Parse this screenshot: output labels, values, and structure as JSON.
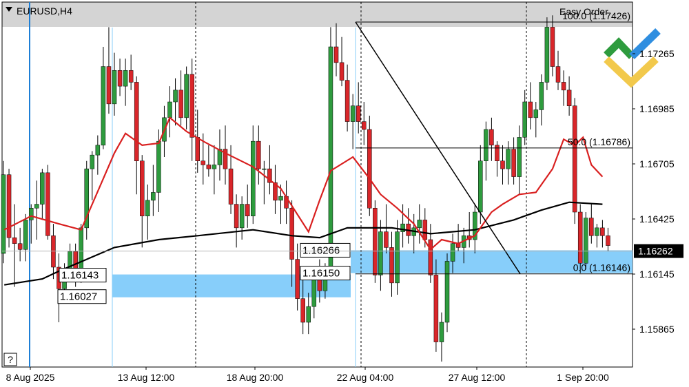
{
  "header": {
    "symbol_label": "EURUSD,H4",
    "easy_order_label": "Easy Order"
  },
  "help_button_label": "?",
  "colors": {
    "bull": "#2e9b3e",
    "bear": "#d9262a",
    "ma_fast": "#d92020",
    "ma_slow": "#000000",
    "zone": "#87cefa",
    "current_price_bg": "#000000",
    "logo_green": "#2e9b3e",
    "logo_blue": "#2f8ee0",
    "logo_yellow": "#f2c94c"
  },
  "icons": [
    "dropdown-triangle-icon",
    "easy-order-logo-icon",
    "help-icon"
  ],
  "chart_data": {
    "type": "candlestick",
    "symbol": "EURUSD",
    "timeframe": "H4",
    "y_ticks": [
      "1.17265",
      "1.16985",
      "1.16705",
      "1.16425",
      "1.16145",
      "1.15865"
    ],
    "x_ticks": [
      "8 Aug 2025",
      "13 Aug 12:00",
      "18 Aug 20:00",
      "22 Aug 04:00",
      "27 Aug 12:00",
      "1 Sep 20:00"
    ],
    "ylim": [
      1.1568,
      1.1762
    ],
    "current_price": "1.16262",
    "price_labels": [
      "1.16143",
      "1.16027",
      "1.16266",
      "1.16150"
    ],
    "fibonacci": {
      "high": 1.17426,
      "low": 1.16146,
      "levels": [
        "100.0 (1.17426)",
        "50.0 (1.16786)",
        "0.0 (1.16146)"
      ]
    },
    "zones": [
      {
        "top": 1.16143,
        "bottom": 1.16027
      },
      {
        "top": 1.16266,
        "bottom": 1.1615
      }
    ],
    "candles": [
      [
        1.1625,
        1.1672,
        1.162,
        1.1665
      ],
      [
        1.1665,
        1.1668,
        1.1628,
        1.1633
      ],
      [
        1.1633,
        1.165,
        1.1608,
        1.163
      ],
      [
        1.163,
        1.1638,
        1.1621,
        1.1627
      ],
      [
        1.1627,
        1.1645,
        1.1621,
        1.1642
      ],
      [
        1.1642,
        1.165,
        1.163,
        1.1648
      ],
      [
        1.1648,
        1.1662,
        1.1632,
        1.165
      ],
      [
        1.165,
        1.1668,
        1.1642,
        1.1666
      ],
      [
        1.1666,
        1.167,
        1.1632,
        1.1634
      ],
      [
        1.1634,
        1.164,
        1.1612,
        1.1618
      ],
      [
        1.1618,
        1.1625,
        1.159,
        1.1607
      ],
      [
        1.1607,
        1.162,
        1.1603,
        1.1617
      ],
      [
        1.1617,
        1.163,
        1.1612,
        1.1626
      ],
      [
        1.1626,
        1.163,
        1.1608,
        1.1614
      ],
      [
        1.1614,
        1.164,
        1.161,
        1.1638
      ],
      [
        1.1638,
        1.1672,
        1.1632,
        1.1668
      ],
      [
        1.1668,
        1.1677,
        1.1652,
        1.1675
      ],
      [
        1.1675,
        1.1685,
        1.1665,
        1.168
      ],
      [
        1.168,
        1.173,
        1.1678,
        1.172
      ],
      [
        1.172,
        1.174,
        1.1696,
        1.1701
      ],
      [
        1.1701,
        1.1727,
        1.1695,
        1.1718
      ],
      [
        1.1718,
        1.1724,
        1.1705,
        1.171
      ],
      [
        1.171,
        1.1724,
        1.17,
        1.1718
      ],
      [
        1.1718,
        1.1726,
        1.1708,
        1.1712
      ],
      [
        1.1712,
        1.1715,
        1.1655,
        1.1672
      ],
      [
        1.1672,
        1.1675,
        1.1628,
        1.1644
      ],
      [
        1.1644,
        1.166,
        1.1632,
        1.1652
      ],
      [
        1.1652,
        1.167,
        1.1644,
        1.1656
      ],
      [
        1.1656,
        1.1688,
        1.1646,
        1.1682
      ],
      [
        1.1682,
        1.17,
        1.1674,
        1.1694
      ],
      [
        1.1694,
        1.171,
        1.1684,
        1.1702
      ],
      [
        1.1702,
        1.1714,
        1.169,
        1.1708
      ],
      [
        1.1708,
        1.1718,
        1.169,
        1.1694
      ],
      [
        1.1694,
        1.172,
        1.1688,
        1.1716
      ],
      [
        1.1716,
        1.1724,
        1.1672,
        1.1684
      ],
      [
        1.1684,
        1.1698,
        1.1666,
        1.1672
      ],
      [
        1.1672,
        1.1686,
        1.166,
        1.167
      ],
      [
        1.167,
        1.168,
        1.1664,
        1.1668
      ],
      [
        1.1668,
        1.168,
        1.1655,
        1.167
      ],
      [
        1.167,
        1.1688,
        1.1662,
        1.1678
      ],
      [
        1.1678,
        1.169,
        1.166,
        1.1668
      ],
      [
        1.1668,
        1.168,
        1.1645,
        1.165
      ],
      [
        1.165,
        1.1655,
        1.1628,
        1.1638
      ],
      [
        1.1638,
        1.1654,
        1.1632,
        1.165
      ],
      [
        1.165,
        1.166,
        1.1638,
        1.1644
      ],
      [
        1.1644,
        1.169,
        1.164,
        1.1682
      ],
      [
        1.1682,
        1.169,
        1.166,
        1.1668
      ],
      [
        1.1668,
        1.1672,
        1.165,
        1.1668
      ],
      [
        1.1668,
        1.168,
        1.1655,
        1.1661
      ],
      [
        1.1661,
        1.167,
        1.1645,
        1.1652
      ],
      [
        1.1652,
        1.166,
        1.164,
        1.1654
      ],
      [
        1.1654,
        1.1662,
        1.164,
        1.1648
      ],
      [
        1.1648,
        1.1652,
        1.1608,
        1.1622
      ],
      [
        1.1622,
        1.163,
        1.1596,
        1.1602
      ],
      [
        1.1602,
        1.1612,
        1.1584,
        1.159
      ],
      [
        1.159,
        1.1605,
        1.1584,
        1.1598
      ],
      [
        1.1598,
        1.1618,
        1.1592,
        1.1612
      ],
      [
        1.1612,
        1.1622,
        1.16,
        1.1606
      ],
      [
        1.1606,
        1.162,
        1.1602,
        1.1615
      ],
      [
        1.1615,
        1.174,
        1.1612,
        1.173
      ],
      [
        1.173,
        1.1742,
        1.1715,
        1.1722
      ],
      [
        1.1722,
        1.1735,
        1.171,
        1.1713
      ],
      [
        1.1713,
        1.1721,
        1.1687,
        1.1692
      ],
      [
        1.1692,
        1.1706,
        1.1678,
        1.17
      ],
      [
        1.17,
        1.1712,
        1.1686,
        1.1692
      ],
      [
        1.1692,
        1.1702,
        1.168,
        1.1688
      ],
      [
        1.1688,
        1.1695,
        1.1644,
        1.1648
      ],
      [
        1.1648,
        1.1652,
        1.161,
        1.1614
      ],
      [
        1.1614,
        1.1642,
        1.1606,
        1.1636
      ],
      [
        1.1636,
        1.165,
        1.1625,
        1.1628
      ],
      [
        1.1628,
        1.1636,
        1.1603,
        1.161
      ],
      [
        1.161,
        1.1642,
        1.1604,
        1.1636
      ],
      [
        1.1636,
        1.165,
        1.1628,
        1.164
      ],
      [
        1.164,
        1.1648,
        1.163,
        1.1634
      ],
      [
        1.1634,
        1.1645,
        1.1625,
        1.1638
      ],
      [
        1.1638,
        1.165,
        1.163,
        1.1642
      ],
      [
        1.1642,
        1.1648,
        1.1628,
        1.1632
      ],
      [
        1.1632,
        1.164,
        1.161,
        1.1614
      ],
      [
        1.1614,
        1.1622,
        1.1575,
        1.158
      ],
      [
        1.158,
        1.1595,
        1.157,
        1.159
      ],
      [
        1.159,
        1.1625,
        1.1585,
        1.1621
      ],
      [
        1.1621,
        1.1635,
        1.1615,
        1.163
      ],
      [
        1.163,
        1.164,
        1.1626,
        1.1628
      ],
      [
        1.1628,
        1.1638,
        1.162,
        1.1634
      ],
      [
        1.1634,
        1.1646,
        1.1628,
        1.1632
      ],
      [
        1.1632,
        1.165,
        1.1625,
        1.1646
      ],
      [
        1.1646,
        1.168,
        1.164,
        1.1672
      ],
      [
        1.1672,
        1.1692,
        1.1662,
        1.1688
      ],
      [
        1.1688,
        1.1694,
        1.1672,
        1.168
      ],
      [
        1.168,
        1.1682,
        1.1664,
        1.1672
      ],
      [
        1.1672,
        1.168,
        1.166,
        1.1668
      ],
      [
        1.1668,
        1.1682,
        1.166,
        1.1678
      ],
      [
        1.1678,
        1.1684,
        1.166,
        1.1664
      ],
      [
        1.1664,
        1.169,
        1.1655,
        1.1684
      ],
      [
        1.1684,
        1.1708,
        1.168,
        1.1702
      ],
      [
        1.1702,
        1.1712,
        1.1688,
        1.1694
      ],
      [
        1.1694,
        1.1702,
        1.1684,
        1.1698
      ],
      [
        1.1698,
        1.1716,
        1.169,
        1.1712
      ],
      [
        1.1712,
        1.1745,
        1.1708,
        1.174
      ],
      [
        1.174,
        1.1746,
        1.1715,
        1.172
      ],
      [
        1.172,
        1.1728,
        1.1708,
        1.1712
      ],
      [
        1.1712,
        1.1718,
        1.17,
        1.1708
      ],
      [
        1.1708,
        1.1715,
        1.1695,
        1.17
      ],
      [
        1.17,
        1.1704,
        1.164,
        1.1646
      ],
      [
        1.1646,
        1.165,
        1.1615,
        1.162
      ],
      [
        1.162,
        1.1646,
        1.1617,
        1.1643
      ],
      [
        1.1643,
        1.165,
        1.163,
        1.1634
      ],
      [
        1.1634,
        1.164,
        1.1628,
        1.1638
      ],
      [
        1.1638,
        1.1642,
        1.1628,
        1.1634
      ],
      [
        1.1634,
        1.1638,
        1.1626,
        1.1629
      ]
    ],
    "ma_fast": [
      [
        0.15,
        1.1637
      ],
      [
        5,
        1.1644
      ],
      [
        10,
        1.164
      ],
      [
        14,
        1.1637
      ],
      [
        18,
        1.1663
      ],
      [
        20,
        1.1676
      ],
      [
        22,
        1.1686
      ],
      [
        25,
        1.168
      ],
      [
        28,
        1.1681
      ],
      [
        30,
        1.1694
      ],
      [
        33,
        1.1687
      ],
      [
        36,
        1.1682
      ],
      [
        40,
        1.1676
      ],
      [
        45,
        1.1669
      ],
      [
        50,
        1.1658
      ],
      [
        55,
        1.1636
      ],
      [
        57,
        1.1652
      ],
      [
        59,
        1.1667
      ],
      [
        63,
        1.1674
      ],
      [
        66,
        1.1663
      ],
      [
        68,
        1.1655
      ],
      [
        71,
        1.1648
      ],
      [
        74,
        1.164
      ],
      [
        77,
        1.1627
      ],
      [
        79,
        1.1632
      ],
      [
        82,
        1.163
      ],
      [
        85,
        1.1634
      ],
      [
        88,
        1.1646
      ],
      [
        90,
        1.165
      ],
      [
        93,
        1.1655
      ],
      [
        96,
        1.1656
      ],
      [
        99,
        1.1668
      ],
      [
        101,
        1.1683
      ],
      [
        103,
        1.168
      ],
      [
        104.5,
        1.1684
      ],
      [
        106,
        1.167
      ],
      [
        108,
        1.1664
      ]
    ],
    "ma_slow": [
      [
        0.15,
        1.1609
      ],
      [
        7,
        1.1612
      ],
      [
        10,
        1.1616
      ],
      [
        15,
        1.1622
      ],
      [
        20,
        1.1628
      ],
      [
        28,
        1.1632
      ],
      [
        35,
        1.1634
      ],
      [
        45,
        1.1637
      ],
      [
        52,
        1.1634
      ],
      [
        57,
        1.1633
      ],
      [
        62,
        1.1638
      ],
      [
        70,
        1.1638
      ],
      [
        77,
        1.1635
      ],
      [
        85,
        1.1637
      ],
      [
        92,
        1.1642
      ],
      [
        97,
        1.1647
      ],
      [
        102,
        1.1651
      ],
      [
        108,
        1.165
      ]
    ]
  }
}
